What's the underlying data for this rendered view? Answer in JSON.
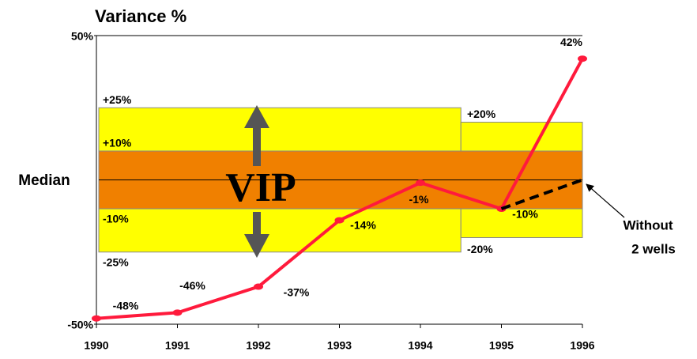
{
  "chart_data": {
    "type": "line",
    "title": "Variance %",
    "x": [
      1990,
      1991,
      1992,
      1993,
      1994,
      1995,
      1996
    ],
    "xlim": [
      1990,
      1996
    ],
    "xticks": [
      1990,
      1991,
      1992,
      1993,
      1994,
      1995,
      1996
    ],
    "ylim": [
      -50,
      50
    ],
    "yticks": [
      {
        "value": 50,
        "label": "50%"
      },
      {
        "value": -50,
        "label": "-50%"
      }
    ],
    "series": [
      {
        "color": "#ff1a3c",
        "values": [
          -48,
          -46,
          -37,
          -14,
          -1,
          -10,
          42
        ],
        "value_labels": [
          "-48%",
          "-46%",
          "-37%",
          "-14%",
          "-1%",
          "-10%",
          "42%"
        ]
      },
      {
        "color": "#000000",
        "dashed": true,
        "values": [
          null,
          null,
          null,
          null,
          null,
          -10,
          0
        ]
      }
    ],
    "bands": [
      {
        "ylim": [
          -25,
          25
        ],
        "xlim": [
          1990,
          1994.5
        ],
        "color": "#ffff00"
      },
      {
        "ylim": [
          -20,
          20
        ],
        "xlim": [
          1994.5,
          1996
        ],
        "color": "#ffff00"
      },
      {
        "ylim": [
          -10,
          10
        ],
        "xlim": [
          1990,
          1996
        ],
        "color": "#f08000"
      }
    ],
    "band_labels_left": [
      {
        "value": 25,
        "label": "+25%"
      },
      {
        "value": 10,
        "label": "+10%"
      },
      {
        "value": -10,
        "label": "-10%"
      },
      {
        "value": -25,
        "label": "-25%"
      }
    ],
    "band_labels_right": [
      {
        "value": 20,
        "label": "+20%"
      },
      {
        "value": -20,
        "label": "-20%"
      }
    ],
    "median_label": "Median",
    "band_name": "VIP",
    "annotation": [
      "Without",
      "2 wells"
    ]
  }
}
